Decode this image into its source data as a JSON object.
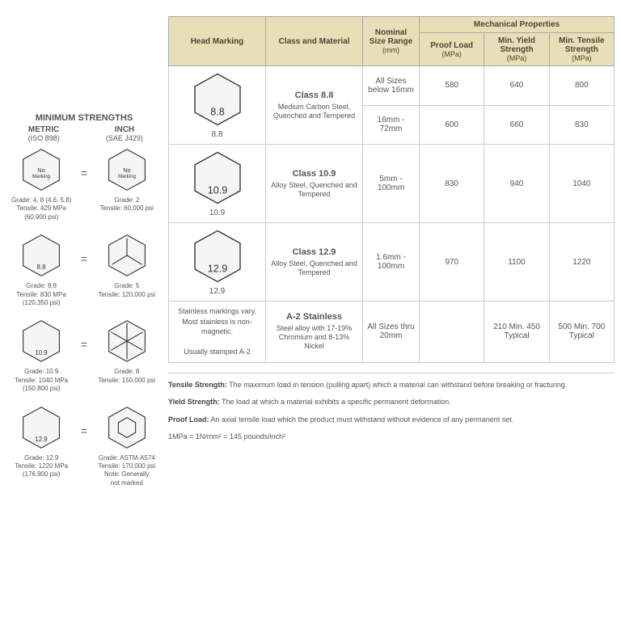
{
  "left": {
    "title": "MINIMUM STRENGTHS",
    "headers": [
      {
        "top": "METRIC",
        "sub": "(ISO 898)"
      },
      {
        "top": "INCH",
        "sub": "(SAE J429)"
      }
    ],
    "rows": [
      {
        "metric": {
          "mark": "No Marking",
          "label": "Grade: 4, 8 (4.6, 5.8)\nTensile: 429 MPa\n(60,900 psi)"
        },
        "inch": {
          "mark": "No Marking",
          "label": "Grade: 2\nTensile: 60,000 psi"
        }
      },
      {
        "metric": {
          "mark": "8.8",
          "label": "Grade: 8.8\nTensile: 830 MPa\n(120,350 psi)"
        },
        "inch": {
          "mark": "3lines",
          "label": "Grade: 5\nTensile: 120,000 psi"
        }
      },
      {
        "metric": {
          "mark": "10.9",
          "label": "Grade: 10.9\nTensile: 1040 MPa\n(150,800 psi)"
        },
        "inch": {
          "mark": "6lines",
          "label": "Grade: 8\nTensile: 150,000 psi"
        }
      },
      {
        "metric": {
          "mark": "12.9",
          "label": "Grade: 12.9\nTensile: 1220 MPa\n(176,900 psi)"
        },
        "inch": {
          "mark": "socket",
          "label": "Grade: ASTM-A574\nTensile: 170,000 psi\nNote: Generally\nnot marked"
        }
      }
    ]
  },
  "table": {
    "headers": {
      "hm": "Head Marking",
      "cm": "Class and Material",
      "nsr": "Nominal Size Range",
      "nsr_unit": "(mm)",
      "mp": "Mechanical Properties",
      "proof": "Proof Load",
      "proof_unit": "(MPa)",
      "yield": "Min. Yield Strength",
      "yield_unit": "(MPa)",
      "tensile": "Min. Tensile Strength",
      "tensile_unit": "(MPa)"
    },
    "rows": [
      {
        "marking": "8.8",
        "marking_label": "8.8",
        "class": "Class 8.8",
        "material": "Medium Carbon Steel, Quenched and Tempered",
        "span": 2,
        "sub": [
          {
            "size": "All Sizes below 16mm",
            "proof": "580",
            "yield": "640",
            "tensile": "800"
          },
          {
            "size": "16mm - 72mm",
            "proof": "600",
            "yield": "660",
            "tensile": "830"
          }
        ]
      },
      {
        "marking": "10.9",
        "marking_label": "10.9",
        "class": "Class 10.9",
        "material": "Alloy Steel, Quenched and Tempered",
        "span": 1,
        "sub": [
          {
            "size": "5mm - 100mm",
            "proof": "830",
            "yield": "940",
            "tensile": "1040"
          }
        ]
      },
      {
        "marking": "12.9",
        "marking_label": "12.9",
        "class": "Class 12.9",
        "material": "Alloy Steel, Quenched and Tempered",
        "span": 1,
        "sub": [
          {
            "size": "1.6mm - 100mm",
            "proof": "970",
            "yield": "1100",
            "tensile": "1220"
          }
        ]
      },
      {
        "marking_text": "Stainless markings vary. Most stainless is non-magnetic.\n\nUsually stamped A-2",
        "class": "A-2 Stainless",
        "material": "Steel alloy with 17-19% Chromium and 8-13% Nickel",
        "span": 1,
        "sub": [
          {
            "size": "All Sizes thru 20mm",
            "proof": "",
            "yield": "210 Min. 450 Typical",
            "tensile": "500 Min. 700 Typical"
          }
        ]
      }
    ]
  },
  "defs": {
    "tensile_label": "Tensile Strength:",
    "tensile_text": " The maximum load in tension (pulling apart) which a material can withstand before breaking or fracturing.",
    "yield_label": "Yield Strength:",
    "yield_text": " The load at which a material exhibits a specific permanent deformation.",
    "proof_label": "Proof Load:",
    "proof_text": " An axial tensile load which the product must withstand without evidence of any permanent set.",
    "unit": "1MPa = 1N/mm² = 145 pounds/inch²"
  }
}
